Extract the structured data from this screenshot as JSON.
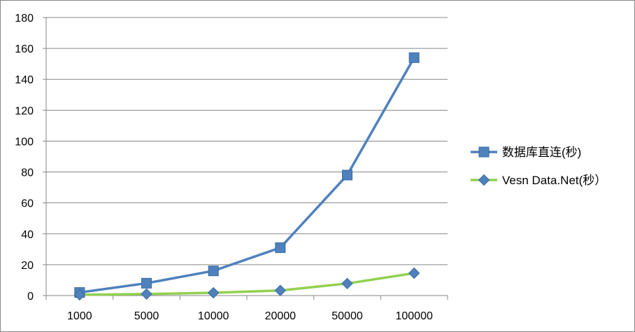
{
  "chart_data": {
    "type": "line",
    "title": "",
    "xlabel": "",
    "ylabel": "",
    "categories": [
      "1000",
      "5000",
      "10000",
      "20000",
      "50000",
      "100000"
    ],
    "ylim": [
      0,
      180
    ],
    "yticks": [
      0,
      20,
      40,
      60,
      80,
      100,
      120,
      140,
      160,
      180
    ],
    "grid": "horizontal",
    "legend_position": "right",
    "series": [
      {
        "name": "数据库直连(秒)",
        "marker": "square",
        "color": "#4F81BD",
        "values": [
          2,
          8,
          16,
          31,
          78,
          154
        ]
      },
      {
        "name": "Vesn Data.Net(秒）",
        "marker": "diamond",
        "color": "#92D050",
        "marker_color": "#4F81BD",
        "values": [
          0.5,
          1,
          1.8,
          3.3,
          7.8,
          14.5
        ]
      }
    ]
  }
}
